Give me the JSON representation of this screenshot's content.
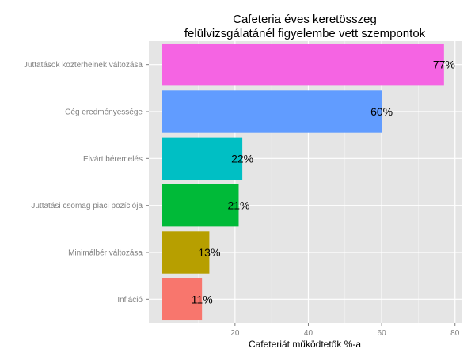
{
  "chart_data": {
    "type": "bar",
    "orientation": "horizontal",
    "title_lines": [
      "Cafeteria éves keretösszeg",
      "felülvizsgálatánél figyelembe vett szempontok"
    ],
    "xlabel": "Cafeteriát működtetők %-a",
    "ylabel": "",
    "xlim": [
      -3.5,
      82
    ],
    "xticks": [
      20,
      40,
      60,
      80
    ],
    "grid": true,
    "legend": "none",
    "categories": [
      "Juttatások közterheinek változása",
      "Cég eredményessége",
      "Elvárt béremelés",
      "Juttatási csomag piaci pozíciója",
      "Minimálbér változása",
      "Infláció"
    ],
    "values": [
      77,
      60,
      22,
      21,
      13,
      11
    ],
    "value_labels": [
      "77%",
      "60%",
      "22%",
      "21%",
      "13%",
      "11%"
    ],
    "colors": [
      "#f564e3",
      "#619cff",
      "#00bfc4",
      "#00ba38",
      "#b79f00",
      "#f8766d"
    ],
    "panel_background": "#e5e5e5",
    "grid_color": "#ffffff"
  }
}
